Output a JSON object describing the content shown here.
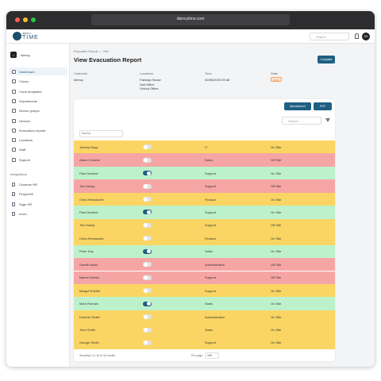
{
  "browser": {
    "url": "idencytime.com"
  },
  "header": {
    "logo_top": "IDENCY",
    "logo": "TIME",
    "search": "Search",
    "avatar": "DS"
  },
  "sidebar": {
    "workspace_initial": "I",
    "workspace": "Idency",
    "nav": [
      "Dashboard",
      "Clocks",
      "Clock templates",
      "Departments",
      "Device groups",
      "Devices",
      "Evacuation reports",
      "Locations",
      "Staff",
      "Support"
    ],
    "integrations_title": "Integrations",
    "integrations": [
      "Cezanne HR",
      "PeopleHR",
      "Sage HR",
      "more..."
    ]
  },
  "page": {
    "breadcrumb": "Evacuation Reports  >  View",
    "title": "View Evacuation Report",
    "complete": "Complete",
    "info": [
      {
        "label": "Customer",
        "value": [
          "Idency"
        ]
      },
      {
        "label": "Locations",
        "value": [
          "Fairway House",
          "Hull Office",
          "Oxford Office"
        ]
      },
      {
        "label": "Time",
        "value": [
          "02/06/2023 09:48"
        ]
      },
      {
        "label": "State",
        "value": [
          "Live"
        ]
      }
    ]
  },
  "table": {
    "spreadsheet": "Spreadsheet",
    "pdf": "PDF",
    "search": "Search",
    "sort_by": "Sort by",
    "rows": [
      {
        "name": "Johnny Depp",
        "present": false,
        "department": "IT",
        "status": "On Site",
        "color": "#fad563"
      },
      {
        "name": "Adam Cordner",
        "present": false,
        "department": "Sales",
        "status": "Off Site",
        "color": "#f6a5a5"
      },
      {
        "name": "Paul Gardner",
        "present": true,
        "department": "Support",
        "status": "On Site",
        "color": "#bdf1cc"
      },
      {
        "name": "Tom Hardy",
        "present": false,
        "department": "Support",
        "status": "Off Site",
        "color": "#f6a5a5"
      },
      {
        "name": "Chris Hemsworth",
        "present": false,
        "department": "Finance",
        "status": "On Site",
        "color": "#fad563"
      },
      {
        "name": "Paul Gardner",
        "present": true,
        "department": "Support",
        "status": "On Site",
        "color": "#bdf1cc"
      },
      {
        "name": "Tom Hardy",
        "present": false,
        "department": "Support",
        "status": "Off Site",
        "color": "#fad563"
      },
      {
        "name": "Chris Hemsworth",
        "present": false,
        "department": "Finance",
        "status": "On Site",
        "color": "#fad563"
      },
      {
        "name": "Peter Kay",
        "present": true,
        "department": "Sales",
        "status": "On Site",
        "color": "#bdf1cc"
      },
      {
        "name": "Gareth Wass",
        "present": false,
        "department": "Administration",
        "status": "Off Site",
        "color": "#f6a5a5"
      },
      {
        "name": "Naomi Palmer",
        "present": false,
        "department": "Support",
        "status": "Off Site",
        "color": "#f6a5a5"
      },
      {
        "name": "Margot Robbie",
        "present": false,
        "department": "Support",
        "status": "On Site",
        "color": "#fad563"
      },
      {
        "name": "Mark Romain",
        "present": true,
        "department": "Sales",
        "status": "On Site",
        "color": "#bdf1cc"
      },
      {
        "name": "Dominic Smith",
        "present": false,
        "department": "Administration",
        "status": "On Site",
        "color": "#fad563"
      },
      {
        "name": "John Smith",
        "present": false,
        "department": "Sales",
        "status": "On Site",
        "color": "#fad563"
      },
      {
        "name": "George Smith",
        "present": false,
        "department": "Support",
        "status": "On Site",
        "color": "#fad563"
      }
    ],
    "footer": "Showing 1 to 16 of 16 results",
    "per_page_label": "Per page",
    "per_page": "100"
  }
}
